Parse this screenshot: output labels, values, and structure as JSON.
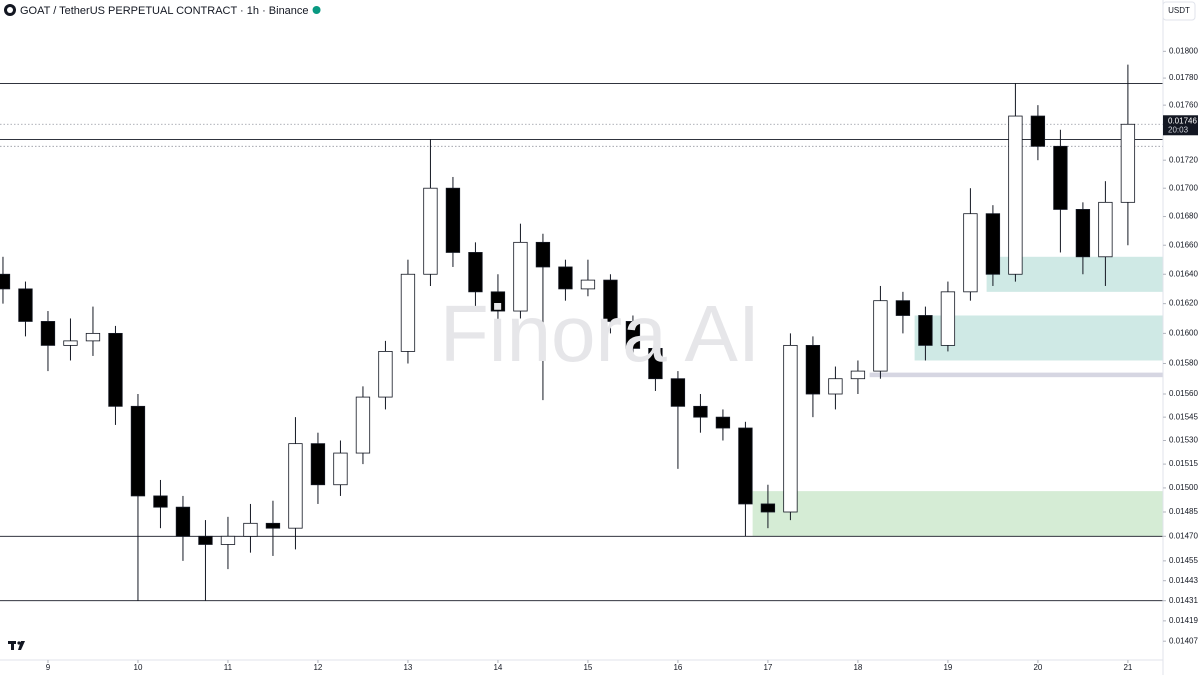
{
  "chart_data": {
    "type": "candlestick",
    "title": "GOAT / TetherUS PERPETUAL CONTRACT · 1h · Binance",
    "currency": "USDT",
    "watermark": "Finora AI",
    "x": [
      8.5,
      8.75,
      9,
      9.25,
      9.5,
      9.75,
      10,
      10.25,
      10.5,
      10.75,
      11,
      11.25,
      11.5,
      11.75,
      12,
      12.25,
      12.5,
      12.75,
      13,
      13.25,
      13.5,
      13.75,
      14,
      14.25,
      14.5,
      14.75,
      15,
      15.25,
      15.5,
      15.75,
      16,
      16.25,
      16.5,
      16.75,
      17,
      17.25,
      17.5,
      17.75,
      18,
      18.25,
      18.5,
      18.75,
      19,
      19.25,
      19.5,
      19.75,
      20,
      20.25,
      20.5,
      20.75,
      21
    ],
    "open": [
      0.0164,
      0.0163,
      0.01608,
      0.01592,
      0.01595,
      0.016,
      0.01552,
      0.01495,
      0.01488,
      0.0147,
      0.01465,
      0.0147,
      0.01478,
      0.01475,
      0.01528,
      0.01502,
      0.01522,
      0.01558,
      0.01588,
      0.0164,
      0.017,
      0.01655,
      0.01628,
      0.01615,
      0.01662,
      0.01645,
      0.0163,
      0.01636,
      0.01608,
      0.0159,
      0.0157,
      0.01552,
      0.01545,
      0.01538,
      0.0149,
      0.01485,
      0.01592,
      0.0156,
      0.0157,
      0.01575,
      0.01622,
      0.01612,
      0.01592,
      0.01628,
      0.01682,
      0.0164,
      0.01752,
      0.0173,
      0.01685,
      0.01652,
      0.0169
    ],
    "high": [
      0.01652,
      0.01635,
      0.01615,
      0.0161,
      0.01618,
      0.01605,
      0.0156,
      0.01505,
      0.01495,
      0.0148,
      0.01482,
      0.0149,
      0.01492,
      0.01545,
      0.01535,
      0.0153,
      0.01565,
      0.01595,
      0.0165,
      0.01735,
      0.01708,
      0.01662,
      0.0164,
      0.01675,
      0.01668,
      0.0165,
      0.0165,
      0.0164,
      0.01612,
      0.01595,
      0.01575,
      0.0156,
      0.0155,
      0.01542,
      0.01502,
      0.016,
      0.01598,
      0.01578,
      0.01582,
      0.01632,
      0.01628,
      0.01618,
      0.01635,
      0.017,
      0.01688,
      0.01776,
      0.0176,
      0.01742,
      0.0169,
      0.01705,
      0.0179
    ],
    "low": [
      0.0162,
      0.01598,
      0.01575,
      0.01582,
      0.01585,
      0.0154,
      0.01431,
      0.01475,
      0.01455,
      0.01431,
      0.0145,
      0.0146,
      0.01458,
      0.01462,
      0.0149,
      0.01495,
      0.01515,
      0.0155,
      0.0158,
      0.01632,
      0.01645,
      0.01618,
      0.01605,
      0.0161,
      0.01556,
      0.01622,
      0.01625,
      0.016,
      0.01582,
      0.01562,
      0.01512,
      0.01535,
      0.0153,
      0.0147,
      0.01475,
      0.0148,
      0.01545,
      0.0155,
      0.0156,
      0.0157,
      0.016,
      0.01582,
      0.01588,
      0.01622,
      0.01632,
      0.01635,
      0.0172,
      0.01655,
      0.0164,
      0.01632,
      0.0166
    ],
    "close": [
      0.0163,
      0.01608,
      0.01592,
      0.01595,
      0.016,
      0.01552,
      0.01495,
      0.01488,
      0.0147,
      0.01465,
      0.0147,
      0.01478,
      0.01475,
      0.01528,
      0.01502,
      0.01522,
      0.01558,
      0.01588,
      0.0164,
      0.017,
      0.01655,
      0.01628,
      0.01615,
      0.01662,
      0.01645,
      0.0163,
      0.01636,
      0.01608,
      0.0159,
      0.0157,
      0.01552,
      0.01545,
      0.01538,
      0.0149,
      0.01485,
      0.01592,
      0.0156,
      0.0157,
      0.01575,
      0.01622,
      0.01612,
      0.01592,
      0.01628,
      0.01682,
      0.0164,
      0.01752,
      0.0173,
      0.01685,
      0.01652,
      0.0169,
      0.01746
    ],
    "up_color": "#ffffff",
    "down_color": "#000000",
    "xlim": [
      8.467,
      21.39
    ],
    "ylim": [
      0.01396,
      0.01839
    ],
    "log_scale": true,
    "xticks": [
      9,
      10,
      11,
      12,
      13,
      14,
      15,
      16,
      17,
      18,
      19,
      20,
      21
    ],
    "yticks": [
      {
        "value": 0.018,
        "label": "0.01800"
      },
      {
        "value": 0.0178,
        "label": "0.01780"
      },
      {
        "value": 0.0176,
        "label": "0.01760"
      },
      {
        "value": 0.0172,
        "label": "0.01720"
      },
      {
        "value": 0.017,
        "label": "0.01700"
      },
      {
        "value": 0.0168,
        "label": "0.01680"
      },
      {
        "value": 0.0166,
        "label": "0.01660"
      },
      {
        "value": 0.0164,
        "label": "0.01640"
      },
      {
        "value": 0.0162,
        "label": "0.01620"
      },
      {
        "value": 0.016,
        "label": "0.01600"
      },
      {
        "value": 0.0158,
        "label": "0.01580"
      },
      {
        "value": 0.0156,
        "label": "0.01560"
      },
      0.01545,
      {
        "value": 0.0153,
        "label": "0.01530"
      },
      0.01515,
      {
        "value": 0.015,
        "label": "0.01500"
      },
      0.01485,
      {
        "value": 0.0147,
        "label": "0.01470"
      },
      0.01455,
      0.01443,
      0.01431,
      0.01419,
      0.01407
    ],
    "levels": [
      {
        "value": 0.01776,
        "style": "solid"
      },
      {
        "value": 0.01735,
        "style": "solid"
      },
      {
        "value": 0.0147,
        "style": "solid"
      },
      {
        "value": 0.01431,
        "style": "solid"
      },
      {
        "value": 0.01746,
        "style": "dotted"
      },
      {
        "value": 0.0173,
        "style": "dotted"
      }
    ],
    "zones": [
      {
        "x0": 19.43,
        "top": 0.01652,
        "bottom": 0.01628,
        "color": "#cfe9e5"
      },
      {
        "x0": 18.63,
        "top": 0.01612,
        "bottom": 0.01582,
        "color": "#cfe9e5"
      },
      {
        "x0": 18.13,
        "top": 0.01574,
        "bottom": 0.01571,
        "color": "#d6d6e2"
      },
      {
        "x0": 16.83,
        "top": 0.01498,
        "bottom": 0.0147,
        "color": "#d5ecd5"
      }
    ],
    "last_price": 0.01746,
    "countdown": "20:03"
  }
}
